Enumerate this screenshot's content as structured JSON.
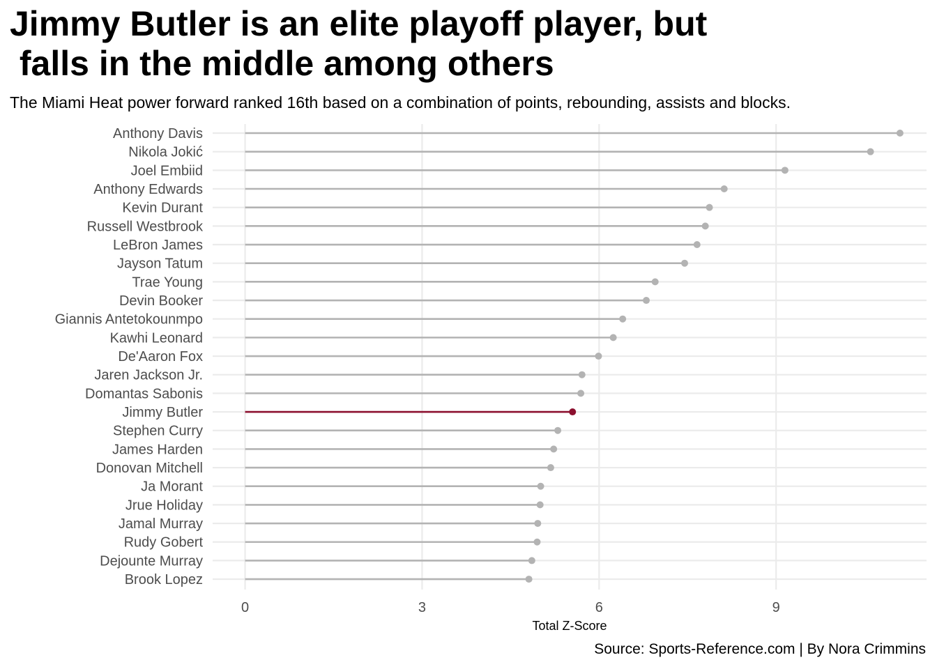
{
  "header": {
    "title": "Jimmy Butler is an elite playoff player, but\n falls in the middle among others",
    "subtitle": "The Miami Heat power forward ranked 16th based on a combination of points, rebounding, assists and blocks.",
    "caption": "Source: Sports-Reference.com | By Nora Crimmins"
  },
  "colors": {
    "default": "#b3b3b3",
    "highlight": "#8b0f2e",
    "grid": "#ebebeb"
  },
  "chart_data": {
    "type": "lollipop",
    "title": "Jimmy Butler is an elite playoff player, but\n falls in the middle among others",
    "subtitle": "The Miami Heat power forward ranked 16th based on a combination of points, rebounding, assists and blocks.",
    "xlabel": "Total Z-Score",
    "ylabel": "",
    "xlim": [
      -0.55,
      11.55
    ],
    "xticks": [
      0,
      3,
      6,
      9
    ],
    "grid": true,
    "highlight": "Jimmy Butler",
    "categories": [
      "Anthony Davis",
      "Nikola Jokić",
      "Joel Embiid",
      "Anthony Edwards",
      "Kevin Durant",
      "Russell Westbrook",
      "LeBron James",
      "Jayson Tatum",
      "Trae Young",
      "Devin Booker",
      "Giannis Antetokounmpo",
      "Kawhi Leonard",
      "De'Aaron Fox",
      "Jaren Jackson Jr.",
      "Domantas Sabonis",
      "Jimmy Butler",
      "Stephen Curry",
      "James Harden",
      "Donovan Mitchell",
      "Ja Morant",
      "Jrue Holiday",
      "Jamal Murray",
      "Rudy Gobert",
      "Dejounte Murray",
      "Brook Lopez"
    ],
    "values": [
      11.1,
      10.6,
      9.15,
      8.12,
      7.87,
      7.8,
      7.66,
      7.45,
      6.95,
      6.8,
      6.4,
      6.24,
      5.99,
      5.71,
      5.69,
      5.55,
      5.3,
      5.23,
      5.18,
      5.01,
      5.0,
      4.96,
      4.95,
      4.86,
      4.81
    ]
  }
}
